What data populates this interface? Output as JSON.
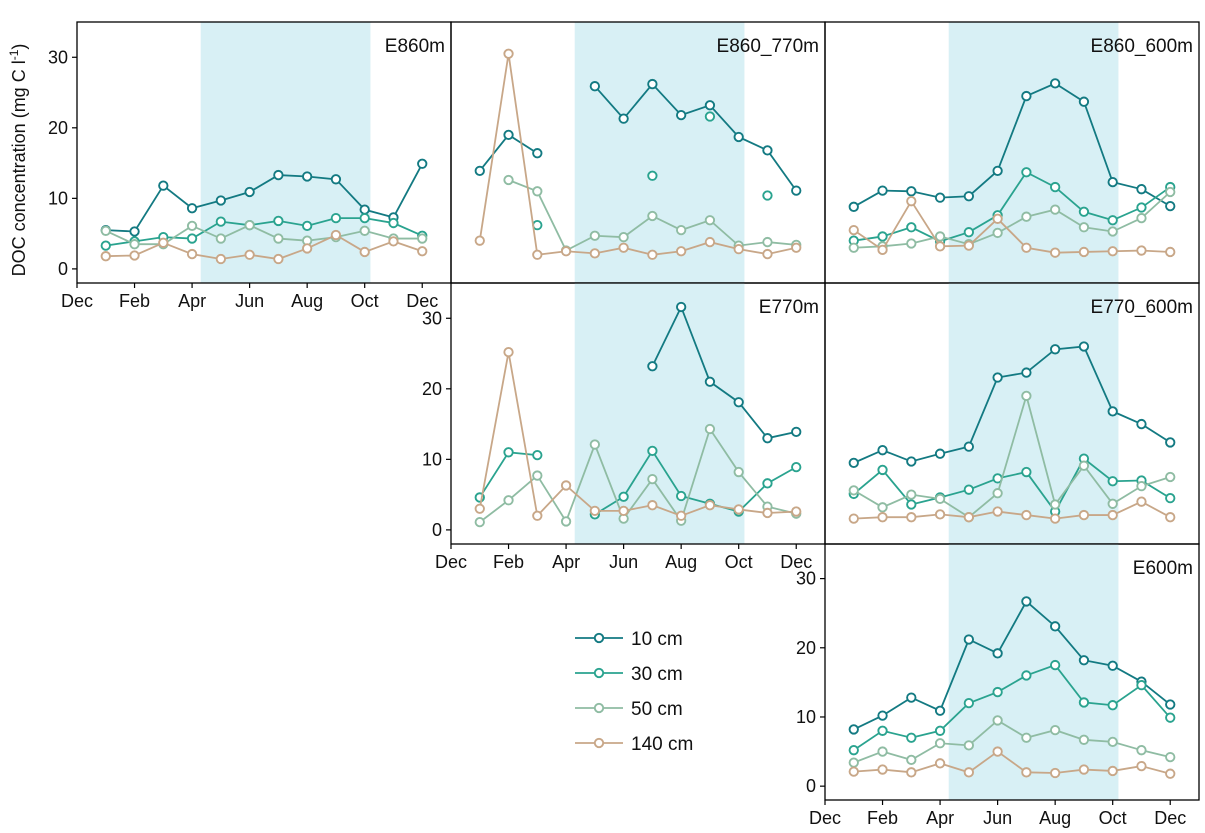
{
  "chart_data": {
    "type": "line",
    "ylabel": "DOC concentration (mg C l",
    "ylabel_sup": "-1",
    "ylabel_end": ")",
    "month_ticks": [
      "Dec",
      "Feb",
      "Apr",
      "Jun",
      "Aug",
      "Oct",
      "Dec"
    ],
    "y_ticks": [
      0,
      10,
      20,
      30
    ],
    "ylim": [
      -2,
      35
    ],
    "xlim": [
      0,
      13
    ],
    "growing_season": [
      4.3,
      10.2
    ],
    "grid": false,
    "legend_position": "center",
    "series_names": [
      "10 cm",
      "30 cm",
      "50 cm",
      "140 cm"
    ],
    "series_colors": [
      "#137a82",
      "#2aa38f",
      "#8fbca3",
      "#c8a788"
    ],
    "panels": [
      {
        "label": "E860m",
        "series": [
          {
            "name": "10 cm",
            "x": [
              1,
              2,
              3,
              4,
              5,
              6,
              7,
              8,
              9,
              10,
              11,
              12
            ],
            "y": [
              5.5,
              5.3,
              11.8,
              8.6,
              9.7,
              10.9,
              13.3,
              13.1,
              12.7,
              8.4,
              7.3,
              14.9
            ]
          },
          {
            "name": "30 cm",
            "x": [
              1,
              2,
              3,
              4,
              5,
              6,
              7,
              8,
              9,
              10,
              11,
              12
            ],
            "y": [
              3.3,
              3.9,
              4.5,
              4.3,
              6.7,
              6.2,
              6.8,
              6.1,
              7.2,
              7.2,
              6.5,
              4.7
            ]
          },
          {
            "name": "50 cm",
            "x": [
              1,
              2,
              3,
              4,
              5,
              6,
              7,
              8,
              9,
              10,
              11,
              12
            ],
            "y": [
              5.4,
              3.5,
              3.5,
              6.1,
              4.3,
              6.2,
              4.3,
              4.0,
              4.5,
              5.4,
              4.3,
              4.3
            ]
          },
          {
            "name": "140 cm",
            "x": [
              1,
              2,
              3,
              4,
              5,
              6,
              7,
              8,
              9,
              10,
              11,
              12
            ],
            "y": [
              1.8,
              1.9,
              3.7,
              2.1,
              1.4,
              2.0,
              1.4,
              2.9,
              4.8,
              2.4,
              3.9,
              2.5
            ]
          }
        ]
      },
      {
        "label": "E860_770m",
        "series": [
          {
            "name": "10 cm",
            "x": [
              1,
              2,
              3,
              5,
              6,
              7,
              8,
              9,
              10,
              11,
              12
            ],
            "y": [
              13.9,
              19.0,
              16.4,
              25.9,
              21.3,
              26.2,
              21.8,
              23.2,
              18.7,
              16.8,
              11.1
            ]
          },
          {
            "name": "30 cm",
            "x": [
              3,
              7,
              9,
              11
            ],
            "y": [
              6.2,
              13.2,
              21.6,
              10.4
            ]
          },
          {
            "name": "50 cm",
            "x": [
              2,
              3,
              4,
              5,
              6,
              7,
              8,
              9,
              10,
              11,
              12
            ],
            "y": [
              12.6,
              11.0,
              2.6,
              4.7,
              4.5,
              7.5,
              5.5,
              6.9,
              3.3,
              3.8,
              3.4
            ]
          },
          {
            "name": "140 cm",
            "x": [
              1,
              2,
              3,
              4,
              5,
              6,
              7,
              8,
              9,
              10,
              11,
              12
            ],
            "y": [
              4.0,
              30.5,
              2.0,
              2.5,
              2.2,
              3.0,
              2.0,
              2.5,
              3.8,
              2.8,
              2.1,
              3.0
            ]
          }
        ]
      },
      {
        "label": "E860_600m",
        "series": [
          {
            "name": "10 cm",
            "x": [
              1,
              2,
              3,
              4,
              5,
              6,
              7,
              8,
              9,
              10,
              11,
              12
            ],
            "y": [
              8.8,
              11.1,
              11.0,
              10.1,
              10.3,
              13.9,
              24.5,
              26.3,
              23.7,
              12.3,
              11.3,
              8.9
            ]
          },
          {
            "name": "30 cm",
            "x": [
              1,
              2,
              3,
              4,
              5,
              6,
              7,
              8,
              9,
              10,
              11,
              12
            ],
            "y": [
              4.0,
              4.6,
              5.9,
              3.9,
              5.2,
              7.6,
              13.7,
              11.6,
              8.1,
              6.9,
              8.7,
              11.6
            ]
          },
          {
            "name": "50 cm",
            "x": [
              1,
              2,
              3,
              4,
              5,
              6,
              7,
              8,
              9,
              10,
              11,
              12
            ],
            "y": [
              3.0,
              3.2,
              3.6,
              4.6,
              3.5,
              5.1,
              7.4,
              8.4,
              5.9,
              5.3,
              7.2,
              10.9
            ]
          },
          {
            "name": "140 cm",
            "x": [
              1,
              2,
              3,
              4,
              5,
              6,
              7,
              8,
              9,
              10,
              11,
              12
            ],
            "y": [
              5.5,
              2.7,
              9.6,
              3.2,
              3.3,
              7.1,
              3.0,
              2.3,
              2.4,
              2.5,
              2.6,
              2.4
            ]
          }
        ]
      },
      {
        "label": "E770m",
        "series": [
          {
            "name": "10 cm",
            "x": [
              7,
              8,
              9,
              10,
              11,
              12
            ],
            "y": [
              23.2,
              31.6,
              21.0,
              18.1,
              13.0,
              13.9
            ]
          },
          {
            "name": "30 cm",
            "x": [
              1,
              2,
              3,
              5,
              6,
              7,
              8,
              9,
              10,
              11,
              12
            ],
            "y": [
              4.6,
              11.0,
              10.6,
              2.2,
              4.7,
              11.2,
              4.8,
              3.7,
              2.6,
              6.6,
              8.9
            ]
          },
          {
            "name": "50 cm",
            "x": [
              1,
              2,
              3,
              4,
              5,
              6,
              7,
              8,
              9,
              10,
              11,
              12
            ],
            "y": [
              1.1,
              4.2,
              7.7,
              1.2,
              12.1,
              1.6,
              7.2,
              1.3,
              14.3,
              8.2,
              3.3,
              2.3
            ]
          },
          {
            "name": "140 cm",
            "x": [
              1,
              2,
              3,
              4,
              5,
              6,
              7,
              8,
              9,
              10,
              11,
              12
            ],
            "y": [
              3.0,
              25.2,
              2.0,
              6.3,
              2.7,
              2.7,
              3.5,
              2.0,
              3.5,
              2.9,
              2.4,
              2.6
            ]
          }
        ]
      },
      {
        "label": "E770_600m",
        "series": [
          {
            "name": "10 cm",
            "x": [
              1,
              2,
              3,
              4,
              5,
              6,
              7,
              8,
              9,
              10,
              11,
              12
            ],
            "y": [
              9.5,
              11.3,
              9.7,
              10.8,
              11.8,
              21.6,
              22.3,
              25.6,
              26.0,
              16.8,
              15.0,
              12.4
            ]
          },
          {
            "name": "30 cm",
            "x": [
              1,
              2,
              3,
              4,
              5,
              6,
              7,
              8,
              9,
              10,
              11,
              12
            ],
            "y": [
              5.1,
              8.5,
              3.6,
              4.6,
              5.7,
              7.3,
              8.2,
              2.6,
              10.1,
              6.9,
              7.0,
              4.5
            ]
          },
          {
            "name": "50 cm",
            "x": [
              1,
              2,
              3,
              4,
              5,
              6,
              7,
              8,
              9,
              10,
              11,
              12
            ],
            "y": [
              5.6,
              3.2,
              5.0,
              4.4,
              1.8,
              5.2,
              19.0,
              3.6,
              9.1,
              3.7,
              6.2,
              7.5
            ]
          },
          {
            "name": "140 cm",
            "x": [
              1,
              2,
              3,
              4,
              5,
              6,
              7,
              8,
              9,
              10,
              11,
              12
            ],
            "y": [
              1.6,
              1.8,
              1.8,
              2.2,
              1.8,
              2.6,
              2.1,
              1.6,
              2.1,
              2.1,
              4.0,
              1.8
            ]
          }
        ]
      },
      {
        "label": "E600m",
        "series": [
          {
            "name": "10 cm",
            "x": [
              1,
              2,
              3,
              4,
              5,
              6,
              7,
              8,
              9,
              10,
              11,
              12
            ],
            "y": [
              8.2,
              10.2,
              12.8,
              10.9,
              21.2,
              19.2,
              26.7,
              23.1,
              18.2,
              17.4,
              15.1,
              11.8
            ]
          },
          {
            "name": "30 cm",
            "x": [
              1,
              2,
              3,
              4,
              5,
              6,
              7,
              8,
              9,
              10,
              11,
              12
            ],
            "y": [
              5.2,
              8.0,
              7.0,
              8.0,
              12.0,
              13.6,
              16.0,
              17.5,
              12.1,
              11.7,
              14.6,
              9.9
            ]
          },
          {
            "name": "50 cm",
            "x": [
              1,
              2,
              3,
              4,
              5,
              6,
              7,
              8,
              9,
              10,
              11,
              12
            ],
            "y": [
              3.4,
              5.0,
              3.8,
              6.2,
              5.9,
              9.5,
              7.0,
              8.1,
              6.7,
              6.4,
              5.2,
              4.2
            ]
          },
          {
            "name": "140 cm",
            "x": [
              1,
              2,
              3,
              4,
              5,
              6,
              7,
              8,
              9,
              10,
              11,
              12
            ],
            "y": [
              2.1,
              2.4,
              2.0,
              3.3,
              2.0,
              5.0,
              2.0,
              1.9,
              2.4,
              2.2,
              2.9,
              1.8
            ]
          }
        ]
      }
    ]
  }
}
